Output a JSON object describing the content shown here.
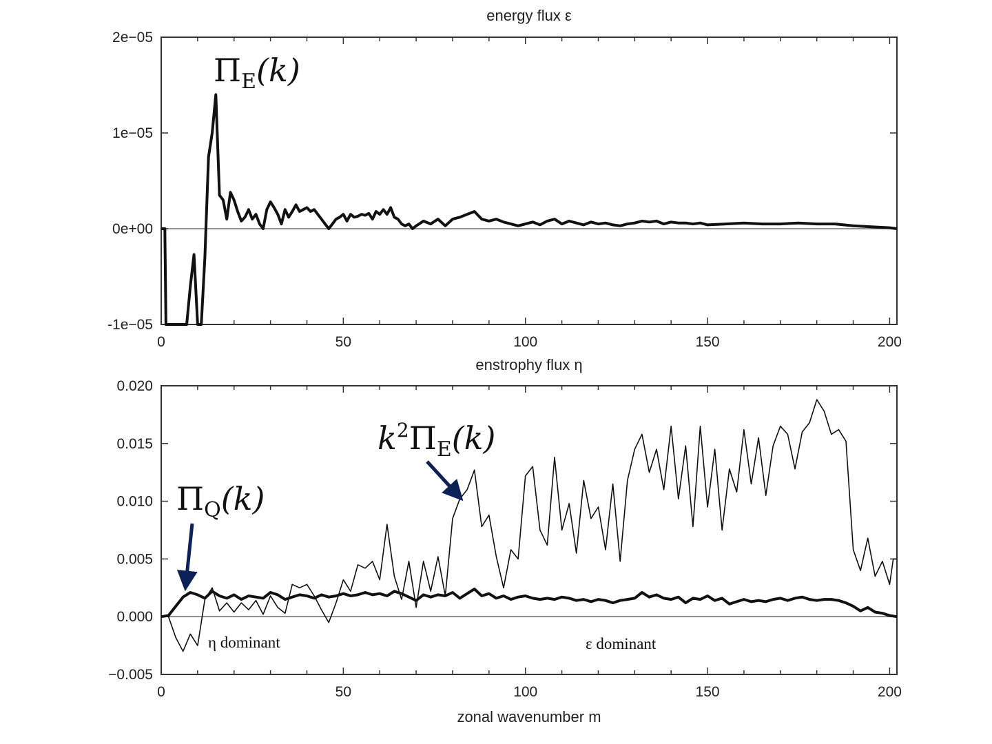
{
  "chart_data": [
    {
      "type": "line",
      "title": "energy flux ε",
      "xlabel": "",
      "ylabel": "",
      "xlim": [
        0,
        202
      ],
      "ylim": [
        -1e-05,
        2e-05
      ],
      "xticks": [
        0,
        50,
        100,
        150,
        200
      ],
      "xtick_labels": [
        "0",
        "50",
        "100",
        "150",
        "200"
      ],
      "yticks": [
        2e-05,
        1e-05,
        0,
        -1e-05
      ],
      "ytick_labels": [
        "2e−05",
        "1e−05",
        "0e+00",
        "-1e−05"
      ],
      "series": [
        {
          "name": "Π_E(k)",
          "style": "thick",
          "x": [
            0,
            1,
            1.3,
            2,
            3,
            6,
            7,
            8,
            9,
            10,
            11,
            12,
            13,
            14,
            15,
            16,
            17,
            18,
            19,
            20,
            21,
            22,
            23,
            24,
            25,
            26,
            27,
            28,
            29,
            30,
            31,
            32,
            33,
            34,
            35,
            36,
            37,
            38,
            39,
            40,
            41,
            42,
            43,
            44,
            45,
            46,
            47,
            48,
            49,
            50,
            51,
            52,
            53,
            54,
            55,
            56,
            57,
            58,
            59,
            60,
            61,
            62,
            63,
            64,
            65,
            66,
            67,
            68,
            69,
            70,
            72,
            74,
            76,
            78,
            80,
            82,
            84,
            86,
            88,
            90,
            92,
            94,
            96,
            98,
            100,
            102,
            104,
            106,
            108,
            110,
            112,
            114,
            116,
            118,
            120,
            122,
            124,
            126,
            128,
            130,
            132,
            134,
            136,
            138,
            140,
            142,
            144,
            146,
            148,
            150,
            155,
            160,
            165,
            170,
            175,
            180,
            185,
            190,
            195,
            200,
            202
          ],
          "y": [
            0,
            0,
            -1e-05,
            -1e-05,
            -1e-05,
            -1e-05,
            -1e-05,
            -6e-06,
            -2.7e-06,
            -1e-05,
            -1e-05,
            -3e-06,
            7.5e-06,
            1e-05,
            1.4e-05,
            3.5e-06,
            3e-06,
            1e-06,
            3.8e-06,
            3e-06,
            1.8e-06,
            8e-07,
            1.2e-06,
            2e-06,
            1e-06,
            1.5e-06,
            5e-07,
            0.0,
            2e-06,
            2.8e-06,
            2.2e-06,
            1.5e-06,
            5e-07,
            2e-06,
            1.2e-06,
            1.8e-06,
            2.5e-06,
            1.8e-06,
            2e-06,
            2.2e-06,
            1.8e-06,
            2e-06,
            1.5e-06,
            1e-06,
            5e-07,
            0.0,
            5e-07,
            1e-06,
            1.2e-06,
            1.5e-06,
            8e-07,
            1.5e-06,
            1.2e-06,
            1.3e-06,
            1.5e-06,
            1.4e-06,
            1.6e-06,
            1e-06,
            1.8e-06,
            1.5e-06,
            2e-06,
            1.5e-06,
            2.2e-06,
            1.2e-06,
            1e-06,
            5e-07,
            3e-07,
            5e-07,
            0.0,
            3e-07,
            8e-07,
            5e-07,
            1e-06,
            3e-07,
            1e-06,
            1.2e-06,
            1.5e-06,
            1.8e-06,
            1e-06,
            8e-07,
            1e-06,
            7e-07,
            5e-07,
            3e-07,
            5e-07,
            7e-07,
            4e-07,
            8e-07,
            1e-06,
            5e-07,
            8e-07,
            6e-07,
            4e-07,
            7e-07,
            5e-07,
            6e-07,
            4e-07,
            3e-07,
            5e-07,
            6e-07,
            8e-07,
            7e-07,
            8e-07,
            5e-07,
            7e-07,
            6e-07,
            6e-07,
            5e-07,
            6e-07,
            4e-07,
            5e-07,
            6e-07,
            5e-07,
            5e-07,
            6e-07,
            5e-07,
            5e-07,
            3e-07,
            2e-07,
            1e-07,
            0.0
          ]
        }
      ],
      "annotations": [
        {
          "label": "Π_E(k)",
          "base": "Π",
          "sub": "E",
          "suffix": "(k)",
          "at": [
            15,
            1.6e-05
          ]
        }
      ]
    },
    {
      "type": "line",
      "title": "enstrophy flux η",
      "xlabel": "zonal wavenumber m",
      "ylabel": "",
      "xlim": [
        0,
        202
      ],
      "ylim": [
        -0.005,
        0.02
      ],
      "xticks": [
        0,
        50,
        100,
        150,
        200
      ],
      "xtick_labels": [
        "0",
        "50",
        "100",
        "150",
        "200"
      ],
      "yticks": [
        0.02,
        0.015,
        0.01,
        0.005,
        0.0,
        -0.005
      ],
      "ytick_labels": [
        "0.020",
        "0.015",
        "0.010",
        "0.005",
        "0.000",
        "−0.005"
      ],
      "series": [
        {
          "name": "Π_Q(k)",
          "style": "thick",
          "x": [
            0,
            2,
            4,
            6,
            8,
            10,
            12,
            14,
            16,
            18,
            20,
            22,
            24,
            26,
            28,
            30,
            32,
            34,
            36,
            38,
            40,
            42,
            44,
            46,
            48,
            50,
            52,
            54,
            56,
            58,
            60,
            62,
            64,
            66,
            68,
            70,
            72,
            74,
            76,
            78,
            80,
            82,
            84,
            86,
            88,
            90,
            92,
            94,
            96,
            98,
            100,
            102,
            104,
            106,
            108,
            110,
            112,
            114,
            116,
            118,
            120,
            122,
            124,
            126,
            128,
            130,
            132,
            134,
            136,
            138,
            140,
            142,
            144,
            146,
            148,
            150,
            152,
            154,
            156,
            158,
            160,
            162,
            164,
            166,
            168,
            170,
            172,
            174,
            176,
            178,
            180,
            182,
            184,
            186,
            188,
            190,
            192,
            194,
            196,
            198,
            200,
            202
          ],
          "y": [
            0,
            0.0001,
            0.0009,
            0.0017,
            0.0021,
            0.0019,
            0.0016,
            0.0022,
            0.0018,
            0.0016,
            0.0019,
            0.0015,
            0.0018,
            0.0017,
            0.0016,
            0.0021,
            0.0019,
            0.0015,
            0.0017,
            0.0019,
            0.0018,
            0.0016,
            0.0019,
            0.0017,
            0.0018,
            0.002,
            0.0018,
            0.0019,
            0.0021,
            0.0019,
            0.002,
            0.0018,
            0.0022,
            0.002,
            0.0017,
            0.0014,
            0.0019,
            0.0017,
            0.0019,
            0.0018,
            0.0021,
            0.0016,
            0.002,
            0.0024,
            0.0018,
            0.002,
            0.0016,
            0.0018,
            0.0015,
            0.0017,
            0.0018,
            0.0016,
            0.0015,
            0.0016,
            0.0015,
            0.0017,
            0.0016,
            0.0014,
            0.0015,
            0.0013,
            0.0015,
            0.0014,
            0.0012,
            0.0014,
            0.0015,
            0.0016,
            0.0021,
            0.0017,
            0.0019,
            0.0016,
            0.0015,
            0.0017,
            0.0012,
            0.0016,
            0.0015,
            0.0018,
            0.0014,
            0.0016,
            0.0011,
            0.0013,
            0.0015,
            0.0013,
            0.0014,
            0.0013,
            0.0015,
            0.0016,
            0.0014,
            0.0016,
            0.0017,
            0.0015,
            0.0014,
            0.0015,
            0.0015,
            0.0014,
            0.0012,
            0.0009,
            0.0005,
            0.0008,
            0.0004,
            0.0003,
            0.0001,
            0
          ]
        },
        {
          "name": "k²Π_E(k)",
          "style": "thin",
          "x": [
            0,
            2,
            4,
            6,
            8,
            10,
            12,
            14,
            16,
            18,
            20,
            22,
            24,
            26,
            28,
            30,
            32,
            34,
            36,
            38,
            40,
            42,
            44,
            46,
            48,
            50,
            52,
            54,
            56,
            58,
            60,
            62,
            64,
            66,
            68,
            70,
            72,
            74,
            76,
            78,
            80,
            82,
            84,
            86,
            88,
            90,
            92,
            94,
            96,
            98,
            100,
            102,
            104,
            106,
            108,
            110,
            112,
            114,
            116,
            118,
            120,
            122,
            124,
            126,
            128,
            130,
            132,
            134,
            136,
            138,
            140,
            142,
            144,
            146,
            148,
            150,
            152,
            154,
            156,
            158,
            160,
            162,
            164,
            166,
            168,
            170,
            172,
            174,
            176,
            178,
            180,
            182,
            184,
            186,
            188,
            190,
            192,
            194,
            196,
            198,
            200,
            201,
            202
          ],
          "y": [
            0,
            0,
            -0.0018,
            -0.003,
            -0.0015,
            -0.0025,
            0.0015,
            0.0025,
            0.0005,
            0.0012,
            0.0004,
            0.0012,
            0.0006,
            0.0014,
            0.0002,
            0.0018,
            0.0008,
            0.0003,
            0.0028,
            0.0025,
            0.0028,
            0.0018,
            0.0006,
            -0.0005,
            0.0012,
            0.0032,
            0.0022,
            0.0045,
            0.0042,
            0.0048,
            0.0032,
            0.008,
            0.0035,
            0.0015,
            0.0048,
            0.0008,
            0.0048,
            0.0022,
            0.0052,
            0.0018,
            0.0085,
            0.0102,
            0.011,
            0.0127,
            0.0078,
            0.0088,
            0.0052,
            0.0025,
            0.0058,
            0.005,
            0.0122,
            0.013,
            0.0075,
            0.0062,
            0.0138,
            0.0075,
            0.0098,
            0.0055,
            0.0118,
            0.0085,
            0.0095,
            0.0058,
            0.0115,
            0.0048,
            0.0118,
            0.0145,
            0.0158,
            0.0125,
            0.0145,
            0.011,
            0.0165,
            0.0102,
            0.0148,
            0.0078,
            0.0165,
            0.0095,
            0.0145,
            0.0075,
            0.0128,
            0.0108,
            0.0162,
            0.0115,
            0.0155,
            0.0105,
            0.0148,
            0.0165,
            0.0158,
            0.0128,
            0.016,
            0.0168,
            0.0188,
            0.0178,
            0.0158,
            0.0162,
            0.0152,
            0.0058,
            0.004,
            0.0068,
            0.0035,
            0.0048,
            0.0028,
            0.005,
            0.005
          ]
        }
      ],
      "annotations": [
        {
          "label": "k²Π_E(k)",
          "base": "Π",
          "sub": "E",
          "prefix": "k",
          "sup": "2",
          "suffix": "(k)",
          "arrow_to": [
            83,
            0.0103
          ]
        },
        {
          "label": "Π_Q(k)",
          "base": "Π",
          "sub": "Q",
          "suffix": "(k)",
          "arrow_to": [
            7,
            0.0023
          ]
        },
        {
          "label": "η dominant",
          "at": [
            13,
            -0.0023
          ]
        },
        {
          "label": "ε dominant",
          "at": [
            147,
            -0.0023
          ]
        }
      ]
    }
  ]
}
